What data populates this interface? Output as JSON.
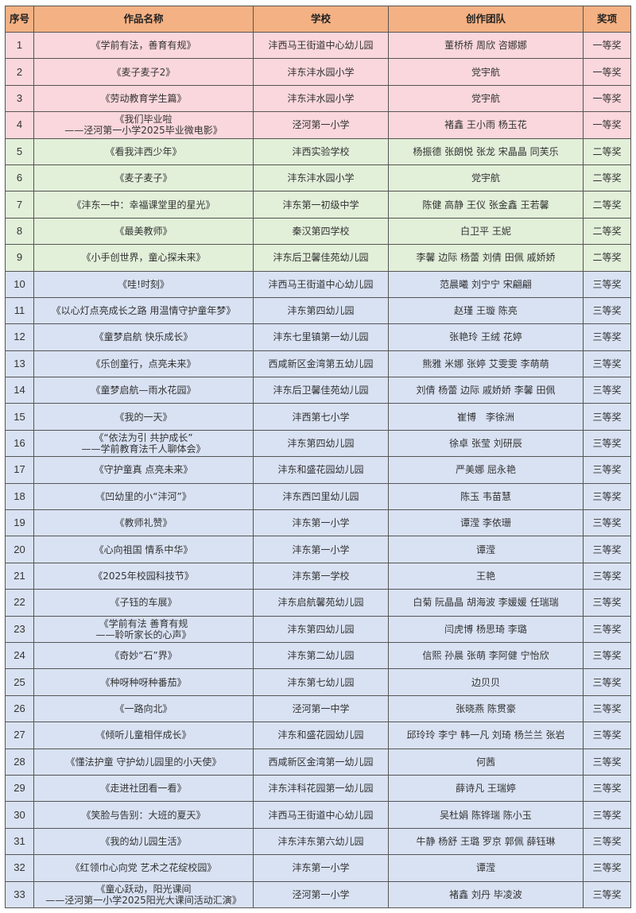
{
  "headers": [
    "序号",
    "作品名称",
    "学校",
    "创作团队",
    "奖项"
  ],
  "tier_colors": {
    "一等奖": "#fad7dc",
    "二等奖": "#e2efd9",
    "三等奖": "#d9e2f3",
    "header": "#f4b183"
  },
  "rows": [
    [
      "1",
      "《学前有法，善育有规》",
      "沣西马王街道中心幼儿园",
      "董桥桥 周欣 咨娜娜",
      "一等奖"
    ],
    [
      "2",
      "《麦子麦子2》",
      "沣东沣水园小学",
      "党宇航",
      "一等奖"
    ],
    [
      "3",
      "《劳动教育学生篇》",
      "沣东沣水园小学",
      "党宇航",
      "一等奖"
    ],
    [
      "4",
      "《我们毕业啦\n——泾河第一小学2025毕业微电影》",
      "泾河第一小学",
      "褚鑫 王小雨 杨玉花",
      "一等奖"
    ],
    [
      "5",
      "《看我沣西少年》",
      "沣西实验学校",
      "杨振德 张朗悦 张龙 宋晶晶 同芙乐",
      "二等奖"
    ],
    [
      "6",
      "《麦子麦子》",
      "沣东沣水园小学",
      "党宇航",
      "二等奖"
    ],
    [
      "7",
      "《沣东一中：幸福课堂里的星光》",
      "沣东第一初级中学",
      "陈健 高静 王仪 张金鑫 王若馨",
      "二等奖"
    ],
    [
      "8",
      "《最美教师》",
      "秦汉第四学校",
      "白卫平 王妮",
      "二等奖"
    ],
    [
      "9",
      "《小手创世界，童心探未来》",
      "沣东后卫馨佳苑幼儿园",
      "李馨 边际 杨蕾 刘倩 田佩 戚娇娇",
      "二等奖"
    ],
    [
      "10",
      "《哇!时刻》",
      "沣西马王街道中心幼儿园",
      "范晨曦 刘宁宁 宋翩翩",
      "三等奖"
    ],
    [
      "11",
      "《以心灯点亮成长之路 用温情守护童年梦》",
      "沣东第四幼儿园",
      "赵瑾 王璇 陈亮",
      "三等奖"
    ],
    [
      "12",
      "《童梦启航 快乐成长》",
      "沣东七里镇第一幼儿园",
      "张艳玲 王绒 花婷",
      "三等奖"
    ],
    [
      "13",
      "《乐创童行，点亮未来》",
      "西咸新区金湾第五幼儿园",
      "熊雅 米娜 张婷 艾雯雯 李萌萌",
      "三等奖"
    ],
    [
      "14",
      "《童梦启航—雨水花园》",
      "沣东后卫馨佳苑幼儿园",
      "刘倩 杨蕾 边际 戚娇娇 李馨 田佩",
      "三等奖"
    ],
    [
      "15",
      "《我的一天》",
      "沣西第七小学",
      "崔博　李徐洲",
      "三等奖"
    ],
    [
      "16",
      "《“依法为引 共护成长”\n——学前教育法千人聊体会》",
      "沣东第四幼儿园",
      "徐卓 张莹 刘研辰",
      "三等奖"
    ],
    [
      "17",
      "《守护童真 点亮未来》",
      "沣东和盛花园幼儿园",
      "严美娜 屈永艳",
      "三等奖"
    ],
    [
      "18",
      "《凹幼里的小“沣河”》",
      "沣东西凹里幼儿园",
      "陈玉 韦苗慧",
      "三等奖"
    ],
    [
      "19",
      "《教师礼赞》",
      "沣东第一小学",
      "谭滢 李依珊",
      "三等奖"
    ],
    [
      "20",
      "《心向祖国 情系中华》",
      "沣东第一小学",
      "谭滢",
      "三等奖"
    ],
    [
      "21",
      "《2025年校园科技节》",
      "沣东第一学校",
      "王艳",
      "三等奖"
    ],
    [
      "22",
      "《子钰的车展》",
      "沣东启航馨苑幼儿园",
      "白菊 阮晶晶 胡海波 李媛媛 任瑞瑞",
      "三等奖"
    ],
    [
      "23",
      "《学前有法 善育有规\n——聆听家长的心声》",
      "沣东第四幼儿园",
      "闫虎博 杨思琦 李璐",
      "三等奖"
    ],
    [
      "24",
      "《奇妙“石”界》",
      "沣东第二幼儿园",
      "信熙 孙晨 张萌 李阿健 宁怡欣",
      "三等奖"
    ],
    [
      "25",
      "《种呀种呀种番茄》",
      "沣东第七幼儿园",
      "边贝贝",
      "三等奖"
    ],
    [
      "26",
      "《一路向北》",
      "泾河第一中学",
      "张晓燕 陈贯豪",
      "三等奖"
    ],
    [
      "27",
      "《倾听儿童相伴成长》",
      "沣东和盛花园幼儿园",
      "邱玲玲 李宁 韩一凡 刘琦 杨兰兰 张岩",
      "三等奖"
    ],
    [
      "28",
      "《懂法护童 守护幼儿园里的小天使》",
      "西咸新区金湾第一幼儿园",
      "何茜",
      "三等奖"
    ],
    [
      "29",
      "《走进社团看一看》",
      "沣东沣科花园第一幼儿园",
      "薛诗凡 王瑞婷",
      "三等奖"
    ],
    [
      "30",
      "《笑脸与告别：大班的夏天》",
      "沣西马王街道中心幼儿园",
      "吴杜娟 陈铧瑞 陈小玉",
      "三等奖"
    ],
    [
      "31",
      "《我的幼儿园生活》",
      "沣东沣东第六幼儿园",
      "牛静 杨舒 王璐 罗京 郭佩 薛钰琳",
      "三等奖"
    ],
    [
      "32",
      "《红领巾心向党 艺术之花绽校园》",
      "沣东第一小学",
      "谭滢",
      "三等奖"
    ],
    [
      "33",
      "《童心跃动，阳光课间\n——泾河第一小学2025阳光大课间活动汇演》",
      "泾河第一小学",
      "褚鑫 刘丹 毕凌波",
      "三等奖"
    ]
  ]
}
